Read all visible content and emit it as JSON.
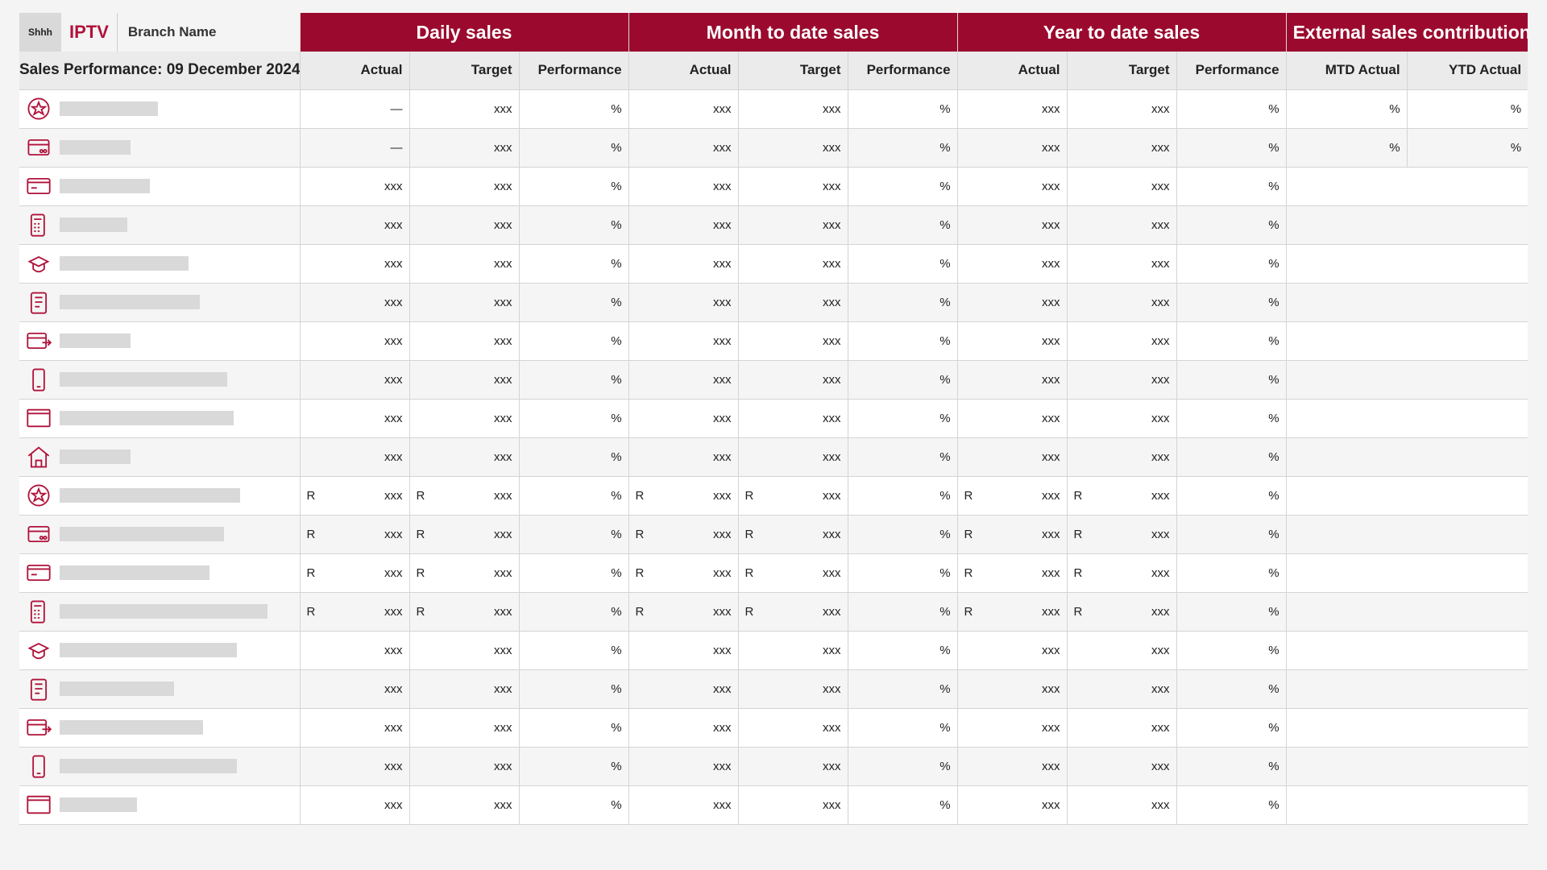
{
  "header": {
    "logo": "Shhh",
    "brand": "IPTV",
    "branch": "Branch Name",
    "title": "Sales Performance: 09 December 2024",
    "groups": [
      "Daily sales",
      "Month to date sales",
      "Year to date sales",
      "External sales contribution"
    ],
    "columns": [
      "Actual",
      "Target",
      "Performance",
      "Actual",
      "Target",
      "Performance",
      "Actual",
      "Target",
      "Performance",
      "MTD Actual",
      "YTD Actual"
    ]
  },
  "rows": [
    {
      "cells": [
        "—",
        "xxx",
        "%",
        "xxx",
        "xxx",
        "%",
        "xxx",
        "xxx",
        "%"
      ],
      "external": [
        "%",
        "%"
      ]
    },
    {
      "cells": [
        "—",
        "xxx",
        "%",
        "xxx",
        "xxx",
        "%",
        "xxx",
        "xxx",
        "%"
      ],
      "external": [
        "%",
        "%"
      ]
    },
    {
      "cells": [
        "xxx",
        "xxx",
        "%",
        "xxx",
        "xxx",
        "%",
        "xxx",
        "xxx",
        "%"
      ]
    },
    {
      "cells": [
        "xxx",
        "xxx",
        "%",
        "xxx",
        "xxx",
        "%",
        "xxx",
        "xxx",
        "%"
      ]
    },
    {
      "cells": [
        "xxx",
        "xxx",
        "%",
        "xxx",
        "xxx",
        "%",
        "xxx",
        "xxx",
        "%"
      ]
    },
    {
      "cells": [
        "xxx",
        "xxx",
        "%",
        "xxx",
        "xxx",
        "%",
        "xxx",
        "xxx",
        "%"
      ]
    },
    {
      "cells": [
        "xxx",
        "xxx",
        "%",
        "xxx",
        "xxx",
        "%",
        "xxx",
        "xxx",
        "%"
      ]
    },
    {
      "cells": [
        "xxx",
        "xxx",
        "%",
        "xxx",
        "xxx",
        "%",
        "xxx",
        "xxx",
        "%"
      ]
    },
    {
      "cells": [
        "xxx",
        "xxx",
        "%",
        "xxx",
        "xxx",
        "%",
        "xxx",
        "xxx",
        "%"
      ]
    },
    {
      "cells": [
        "xxx",
        "xxx",
        "%",
        "xxx",
        "xxx",
        "%",
        "xxx",
        "xxx",
        "%"
      ]
    },
    {
      "cells": [
        {
          "currency": "R",
          "text": "xxx"
        },
        {
          "currency": "R",
          "text": "xxx"
        },
        "%",
        {
          "currency": "R",
          "text": "xxx"
        },
        {
          "currency": "R",
          "text": "xxx"
        },
        "%",
        {
          "currency": "R",
          "text": "xxx"
        },
        {
          "currency": "R",
          "text": "xxx"
        },
        "%"
      ]
    },
    {
      "cells": [
        {
          "currency": "R",
          "text": "xxx"
        },
        {
          "currency": "R",
          "text": "xxx"
        },
        "%",
        {
          "currency": "R",
          "text": "xxx"
        },
        {
          "currency": "R",
          "text": "xxx"
        },
        "%",
        {
          "currency": "R",
          "text": "xxx"
        },
        {
          "currency": "R",
          "text": "xxx"
        },
        "%"
      ]
    },
    {
      "cells": [
        {
          "currency": "R",
          "text": "xxx"
        },
        {
          "currency": "R",
          "text": "xxx"
        },
        "%",
        {
          "currency": "R",
          "text": "xxx"
        },
        {
          "currency": "R",
          "text": "xxx"
        },
        "%",
        {
          "currency": "R",
          "text": "xxx"
        },
        {
          "currency": "R",
          "text": "xxx"
        },
        "%"
      ]
    },
    {
      "cells": [
        {
          "currency": "R",
          "text": "xxx"
        },
        {
          "currency": "R",
          "text": "xxx"
        },
        "%",
        {
          "currency": "R",
          "text": "xxx"
        },
        {
          "currency": "R",
          "text": "xxx"
        },
        "%",
        {
          "currency": "R",
          "text": "xxx"
        },
        {
          "currency": "R",
          "text": "xxx"
        },
        "%"
      ]
    },
    {
      "cells": [
        "xxx",
        "xxx",
        "%",
        "xxx",
        "xxx",
        "%",
        "xxx",
        "xxx",
        "%"
      ]
    },
    {
      "cells": [
        "xxx",
        "xxx",
        "%",
        "xxx",
        "xxx",
        "%",
        "xxx",
        "xxx",
        "%"
      ]
    },
    {
      "cells": [
        "xxx",
        "xxx",
        "%",
        "xxx",
        "xxx",
        "%",
        "xxx",
        "xxx",
        "%"
      ]
    },
    {
      "cells": [
        "xxx",
        "xxx",
        "%",
        "xxx",
        "xxx",
        "%",
        "xxx",
        "xxx",
        "%"
      ]
    },
    {
      "cells": [
        "xxx",
        "xxx",
        "%",
        "xxx",
        "xxx",
        "%",
        "xxx",
        "xxx",
        "%"
      ]
    }
  ]
}
